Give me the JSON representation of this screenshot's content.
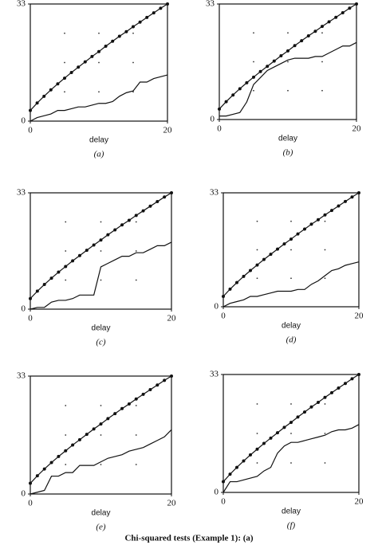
{
  "chart_data": [
    {
      "type": "line",
      "panel_label": "(a)",
      "xlabel": "delay",
      "x": [
        0,
        1,
        2,
        3,
        4,
        5,
        6,
        7,
        8,
        9,
        10,
        11,
        12,
        13,
        14,
        15,
        16,
        17,
        18,
        19,
        20
      ],
      "xlim": [
        0,
        20
      ],
      "xticks": [
        0,
        20
      ],
      "ylim": [
        0,
        33
      ],
      "yticks": [
        0,
        33
      ],
      "series": [
        {
          "color": "#111111",
          "marker": true,
          "values": [
            3,
            5.1,
            7,
            8.8,
            10.5,
            12.1,
            13.7,
            15.2,
            16.7,
            18.2,
            19.6,
            21.1,
            22.5,
            23.9,
            25.2,
            26.6,
            27.9,
            29.2,
            30.5,
            31.8,
            33
          ]
        },
        {
          "color": "#111111",
          "marker": false,
          "values": [
            0,
            1,
            1.5,
            2,
            3,
            3,
            3.5,
            4,
            4,
            4.5,
            5,
            5,
            5.5,
            7,
            8,
            8.5,
            11,
            11,
            12,
            12.5,
            13
          ]
        }
      ]
    },
    {
      "type": "line",
      "panel_label": "(b)",
      "xlabel": "delay",
      "x": [
        0,
        1,
        2,
        3,
        4,
        5,
        6,
        7,
        8,
        9,
        10,
        11,
        12,
        13,
        14,
        15,
        16,
        17,
        18,
        19,
        20
      ],
      "xlim": [
        0,
        20
      ],
      "xticks": [
        0,
        20
      ],
      "ylim": [
        0,
        33
      ],
      "yticks": [
        0,
        33
      ],
      "series": [
        {
          "color": "#111111",
          "marker": true,
          "values": [
            3,
            5.1,
            7,
            8.8,
            10.5,
            12.1,
            13.7,
            15.2,
            16.7,
            18.2,
            19.6,
            21.1,
            22.5,
            23.9,
            25.2,
            26.6,
            27.9,
            29.2,
            30.5,
            31.8,
            33
          ]
        },
        {
          "color": "#111111",
          "marker": false,
          "values": [
            1,
            1,
            1.5,
            2,
            5,
            10,
            12,
            14,
            15,
            16,
            17,
            17.5,
            17.5,
            17.5,
            18,
            18,
            19,
            20,
            21,
            21,
            22
          ]
        }
      ]
    },
    {
      "type": "line",
      "panel_label": "(c)",
      "xlabel": "delay",
      "x": [
        0,
        1,
        2,
        3,
        4,
        5,
        6,
        7,
        8,
        9,
        10,
        11,
        12,
        13,
        14,
        15,
        16,
        17,
        18,
        19,
        20
      ],
      "xlim": [
        0,
        20
      ],
      "xticks": [
        0,
        20
      ],
      "ylim": [
        0,
        33
      ],
      "yticks": [
        0,
        33
      ],
      "series": [
        {
          "color": "#111111",
          "marker": true,
          "values": [
            3,
            5.1,
            7,
            8.8,
            10.5,
            12.1,
            13.7,
            15.2,
            16.7,
            18.2,
            19.6,
            21.1,
            22.5,
            23.9,
            25.2,
            26.6,
            27.9,
            29.2,
            30.5,
            31.8,
            33
          ]
        },
        {
          "color": "#111111",
          "marker": false,
          "values": [
            0,
            0.5,
            0.5,
            2,
            2.5,
            2.5,
            3,
            4,
            4,
            4,
            12,
            13,
            14,
            15,
            15,
            16,
            16,
            17,
            18,
            18,
            19
          ]
        }
      ]
    },
    {
      "type": "line",
      "panel_label": "(d)",
      "xlabel": "delay",
      "x": [
        0,
        1,
        2,
        3,
        4,
        5,
        6,
        7,
        8,
        9,
        10,
        11,
        12,
        13,
        14,
        15,
        16,
        17,
        18,
        19,
        20
      ],
      "xlim": [
        0,
        20
      ],
      "xticks": [
        0,
        20
      ],
      "ylim": [
        0,
        33
      ],
      "yticks": [
        0,
        33
      ],
      "series": [
        {
          "color": "#111111",
          "marker": true,
          "values": [
            3,
            5.1,
            7,
            8.8,
            10.5,
            12.1,
            13.7,
            15.2,
            16.7,
            18.2,
            19.6,
            21.1,
            22.5,
            23.9,
            25.2,
            26.6,
            27.9,
            29.2,
            30.5,
            31.8,
            33
          ]
        },
        {
          "color": "#111111",
          "marker": false,
          "values": [
            0,
            1,
            1.5,
            2,
            3,
            3,
            3.5,
            4,
            4.5,
            4.5,
            4.5,
            5,
            5,
            6.5,
            7.5,
            9,
            10.5,
            11,
            12,
            12.5,
            13
          ]
        }
      ]
    },
    {
      "type": "line",
      "panel_label": "(e)",
      "xlabel": "delay",
      "x": [
        0,
        1,
        2,
        3,
        4,
        5,
        6,
        7,
        8,
        9,
        10,
        11,
        12,
        13,
        14,
        15,
        16,
        17,
        18,
        19,
        20
      ],
      "xlim": [
        0,
        20
      ],
      "xticks": [
        0,
        20
      ],
      "ylim": [
        0,
        33
      ],
      "yticks": [
        0,
        33
      ],
      "series": [
        {
          "color": "#111111",
          "marker": true,
          "values": [
            3,
            5.1,
            7,
            8.8,
            10.5,
            12.1,
            13.7,
            15.2,
            16.7,
            18.2,
            19.6,
            21.1,
            22.5,
            23.9,
            25.2,
            26.6,
            27.9,
            29.2,
            30.5,
            31.8,
            33
          ]
        },
        {
          "color": "#111111",
          "marker": false,
          "values": [
            0,
            0.5,
            1,
            5,
            5,
            6,
            6,
            8,
            8,
            8,
            9,
            10,
            10.5,
            11,
            12,
            12.5,
            13,
            14,
            15,
            16,
            18
          ]
        }
      ]
    },
    {
      "type": "line",
      "panel_label": "(f)",
      "xlabel": "delay",
      "x": [
        0,
        1,
        2,
        3,
        4,
        5,
        6,
        7,
        8,
        9,
        10,
        11,
        12,
        13,
        14,
        15,
        16,
        17,
        18,
        19,
        20
      ],
      "xlim": [
        0,
        20
      ],
      "xticks": [
        0,
        20
      ],
      "ylim": [
        0,
        33
      ],
      "yticks": [
        0,
        33
      ],
      "series": [
        {
          "color": "#111111",
          "marker": true,
          "values": [
            3,
            5.1,
            7,
            8.8,
            10.5,
            12.1,
            13.7,
            15.2,
            16.7,
            18.2,
            19.6,
            21.1,
            22.5,
            23.9,
            25.2,
            26.6,
            27.9,
            29.2,
            30.5,
            31.8,
            33
          ]
        },
        {
          "color": "#111111",
          "marker": false,
          "values": [
            0,
            3,
            3,
            3.5,
            4,
            4.5,
            6,
            7,
            11,
            13,
            14,
            14,
            14.5,
            15,
            15.5,
            16,
            17,
            17.5,
            17.5,
            18,
            19
          ]
        }
      ]
    }
  ],
  "caption": "Chi-squared tests (Example 1): (a)"
}
